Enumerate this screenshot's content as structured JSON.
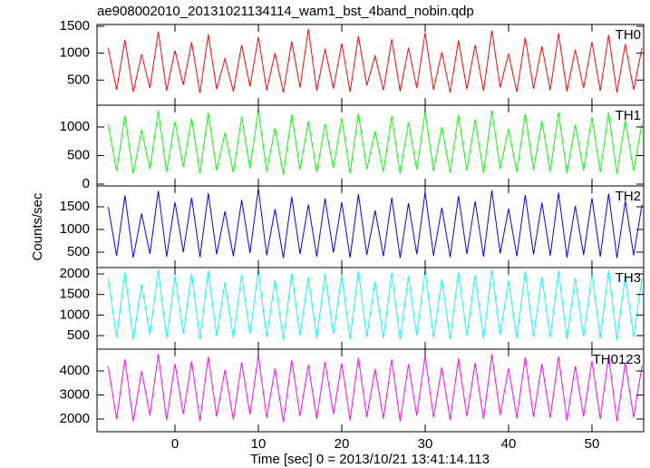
{
  "chart_data": {
    "type": "line",
    "title": "ae908002010_20131021134114_wam1_bst_4band_nobin.qdp",
    "xlabel": "Time [sec] 0 = 2013/10/21 13:41:14.113",
    "ylabel": "Counts/sec",
    "xlim": [
      -9.35,
      56.2
    ],
    "xticks": [
      0,
      10,
      20,
      30,
      40,
      50
    ],
    "x": [
      -8,
      -7,
      -6,
      -5,
      -4,
      -3,
      -2,
      -1,
      0,
      1,
      2,
      3,
      4,
      5,
      6,
      7,
      8,
      9,
      10,
      11,
      12,
      13,
      14,
      15,
      16,
      17,
      18,
      19,
      20,
      21,
      22,
      23,
      24,
      25,
      26,
      27,
      28,
      29,
      30,
      31,
      32,
      33,
      34,
      35,
      36,
      37,
      38,
      39,
      40,
      41,
      42,
      43,
      44,
      45,
      46,
      47,
      48,
      49,
      50,
      51,
      52,
      53,
      54,
      55,
      56
    ],
    "panels": [
      {
        "label": "TH0",
        "color": "#ff0000",
        "ylim": [
          33,
          1533
        ],
        "yticks": [
          500,
          1000,
          1500
        ],
        "values": [
          1100,
          320,
          1250,
          280,
          980,
          350,
          1400,
          300,
          1050,
          410,
          1200,
          260,
          1350,
          330,
          900,
          290,
          1150,
          380,
          1300,
          310,
          1000,
          270,
          1220,
          360,
          1450,
          300,
          1080,
          340,
          1180,
          280,
          1320,
          400,
          950,
          310,
          1260,
          290,
          1100,
          350,
          1380,
          320,
          1020,
          270,
          1240,
          330,
          1150,
          300,
          1420,
          360,
          990,
          280,
          1290,
          340,
          1130,
          310,
          1370,
          290,
          1060,
          350,
          1210,
          300,
          1340,
          270,
          1170,
          320,
          1100
        ]
      },
      {
        "label": "TH1",
        "color": "#00ff00",
        "ylim": [
          -32,
          1381
        ],
        "yticks": [
          0,
          500,
          1000
        ],
        "values": [
          1050,
          230,
          1200,
          180,
          950,
          260,
          1280,
          210,
          1100,
          300,
          1150,
          190,
          1250,
          240,
          900,
          200,
          1180,
          270,
          1300,
          220,
          980,
          170,
          1220,
          250,
          1100,
          210,
          1050,
          280,
          1160,
          190,
          1240,
          260,
          930,
          220,
          1190,
          180,
          1080,
          250,
          1270,
          230,
          1000,
          200,
          1210,
          240,
          1130,
          190,
          1290,
          260,
          970,
          210,
          1230,
          250,
          1110,
          220,
          1260,
          190,
          1040,
          240,
          1180,
          210,
          1250,
          180,
          1120,
          230,
          1060
        ]
      },
      {
        "label": "TH2",
        "color": "#0000ff",
        "ylim": [
          160,
          1960
        ],
        "yticks": [
          500,
          1000,
          1500
        ],
        "values": [
          1500,
          420,
          1750,
          380,
          1350,
          460,
          1850,
          400,
          1600,
          500,
          1700,
          390,
          1800,
          450,
          1400,
          410,
          1650,
          480,
          1900,
          430,
          1450,
          370,
          1720,
          460,
          1550,
          400,
          1680,
          490,
          1600,
          380,
          1780,
          440,
          1420,
          410,
          1700,
          370,
          1580,
          450,
          1820,
          420,
          1480,
          390,
          1740,
          460,
          1620,
          400,
          1860,
          470,
          1460,
          410,
          1760,
          450,
          1590,
          420,
          1810,
          380,
          1520,
          440,
          1690,
          400,
          1790,
          370,
          1630,
          430,
          1550
        ]
      },
      {
        "label": "TH3",
        "color": "#00ffff",
        "ylim": [
          170,
          2154
        ],
        "yticks": [
          500,
          1000,
          1500,
          2000
        ],
        "values": [
          1900,
          450,
          2050,
          400,
          1750,
          520,
          2100,
          430,
          1950,
          550,
          2000,
          410,
          2080,
          480,
          1800,
          440,
          1980,
          530,
          2100,
          460,
          1850,
          390,
          2020,
          500,
          1920,
          430,
          1990,
          540,
          1960,
          410,
          2070,
          470,
          1820,
          440,
          2030,
          400,
          1940,
          490,
          2090,
          450,
          1870,
          420,
          2040,
          500,
          1970,
          430,
          2100,
          510,
          1840,
          440,
          2060,
          480,
          1930,
          450,
          2080,
          410,
          1890,
          470,
          2010,
          430,
          2090,
          400,
          1960,
          460,
          1910
        ]
      },
      {
        "label": "TH0123",
        "color": "#ff00ff",
        "ylim": [
          1472,
          4906
        ],
        "yticks": [
          2000,
          3000,
          4000
        ],
        "values": [
          4200,
          2000,
          4500,
          1900,
          4000,
          2150,
          4700,
          1950,
          4300,
          2200,
          4400,
          1920,
          4600,
          2100,
          4050,
          1980,
          4350,
          2180,
          4650,
          2050,
          4100,
          1880,
          4450,
          2120,
          4250,
          2000,
          4380,
          2200,
          4320,
          1950,
          4550,
          2080,
          4080,
          2020,
          4480,
          1900,
          4280,
          2140,
          4620,
          2060,
          4150,
          1960,
          4520,
          2110,
          4330,
          2010,
          4680,
          2170,
          4120,
          2030,
          4570,
          2090,
          4300,
          2040,
          4600,
          1930,
          4200,
          2100,
          4420,
          2000,
          4640,
          1910,
          4340,
          2070,
          4220
        ]
      }
    ]
  }
}
